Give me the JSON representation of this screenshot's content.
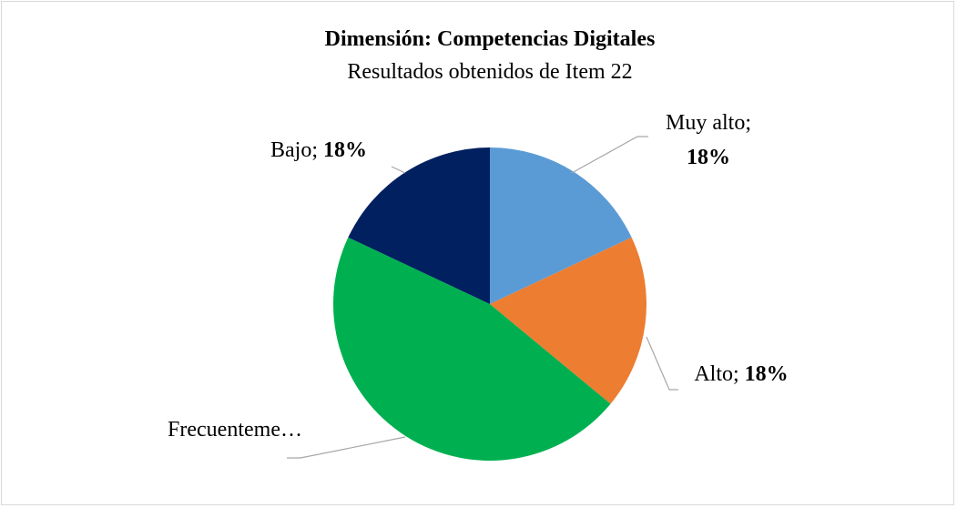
{
  "chart_data": {
    "type": "pie",
    "title": "Dimensión: Competencias Digitales",
    "subtitle": "Resultados obtenidos de Item 22",
    "categories": [
      "Muy alto;",
      "Alto;",
      "Frecuenteme…",
      "Bajo;"
    ],
    "values": [
      18,
      18,
      46,
      18
    ],
    "value_labels": [
      "18%",
      "18%",
      null,
      "18%"
    ],
    "colors": [
      "#5b9bd5",
      "#ed7d31",
      "#00b050",
      "#002060"
    ]
  }
}
